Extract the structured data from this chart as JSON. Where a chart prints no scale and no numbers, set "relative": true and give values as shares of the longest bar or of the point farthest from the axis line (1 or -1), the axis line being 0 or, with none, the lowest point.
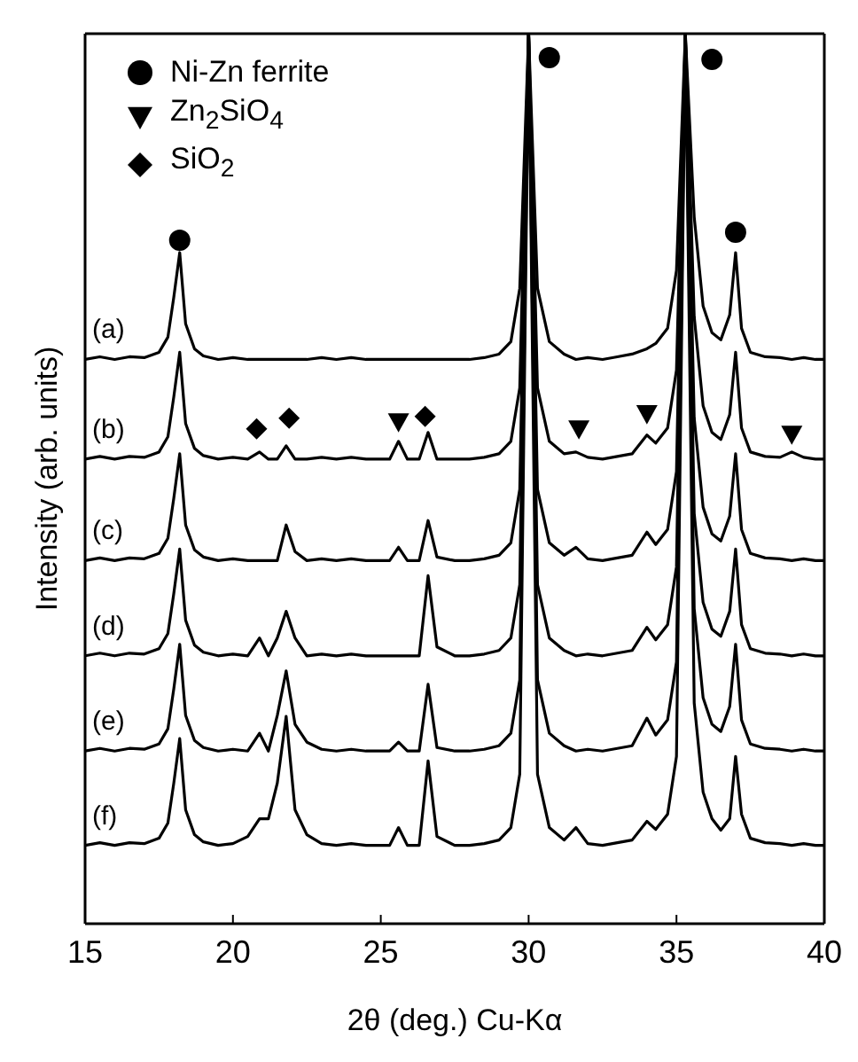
{
  "chart_data": {
    "type": "line",
    "xlabel": "2θ (deg.) Cu-Kα",
    "ylabel": "Intensity (arb. units)",
    "relative": true,
    "xlim": [
      15,
      40
    ],
    "xticks": [
      15,
      20,
      25,
      30,
      35,
      40
    ],
    "legend": "top left",
    "marker": "none",
    "line_style": "solid",
    "x": [
      15,
      15.5,
      16,
      16.5,
      17,
      17.5,
      17.8,
      18.0,
      18.2,
      18.4,
      18.7,
      19,
      19.5,
      20,
      20.5,
      20.9,
      21.2,
      21.5,
      21.8,
      22.1,
      22.5,
      23,
      23.5,
      24,
      24.5,
      25,
      25.3,
      25.6,
      25.9,
      26.3,
      26.6,
      26.9,
      27.5,
      28,
      28.5,
      29,
      29.4,
      29.7,
      30.0,
      30.3,
      30.7,
      31.2,
      31.6,
      32,
      32.5,
      33,
      33.5,
      34.0,
      34.3,
      34.7,
      35.0,
      35.3,
      35.6,
      35.9,
      36.2,
      36.5,
      36.8,
      37.0,
      37.2,
      37.5,
      38,
      38.5,
      38.9,
      39.3,
      39.7,
      40
    ],
    "series": [
      {
        "name": "(a)",
        "color": "#000000",
        "values": [
          0.634,
          0.637,
          0.634,
          0.637,
          0.636,
          0.642,
          0.659,
          0.704,
          0.754,
          0.674,
          0.646,
          0.638,
          0.634,
          0.636,
          0.634,
          0.634,
          0.634,
          0.634,
          0.634,
          0.634,
          0.634,
          0.636,
          0.634,
          0.636,
          0.634,
          0.634,
          0.634,
          0.634,
          0.634,
          0.634,
          0.634,
          0.634,
          0.634,
          0.634,
          0.636,
          0.64,
          0.654,
          0.714,
          1,
          0.714,
          0.654,
          0.64,
          0.634,
          0.636,
          0.634,
          0.637,
          0.64,
          0.646,
          0.652,
          0.669,
          0.734,
          1,
          0.794,
          0.694,
          0.664,
          0.656,
          0.684,
          0.754,
          0.669,
          0.642,
          0.637,
          0.636,
          0.634,
          0.636,
          0.634,
          0.634
        ]
      },
      {
        "name": "(b)",
        "color": "#000000",
        "values": [
          0.522,
          0.525,
          0.522,
          0.525,
          0.524,
          0.53,
          0.547,
          0.592,
          0.642,
          0.562,
          0.534,
          0.526,
          0.522,
          0.524,
          0.522,
          0.53,
          0.522,
          0.522,
          0.537,
          0.522,
          0.522,
          0.524,
          0.522,
          0.524,
          0.522,
          0.522,
          0.522,
          0.542,
          0.522,
          0.522,
          0.552,
          0.522,
          0.522,
          0.522,
          0.524,
          0.528,
          0.542,
          0.602,
          1,
          0.602,
          0.542,
          0.528,
          0.53,
          0.524,
          0.522,
          0.525,
          0.528,
          0.549,
          0.54,
          0.557,
          0.622,
          1,
          0.682,
          0.582,
          0.552,
          0.544,
          0.572,
          0.642,
          0.557,
          0.53,
          0.525,
          0.524,
          0.53,
          0.524,
          0.522,
          0.522
        ]
      },
      {
        "name": "(c)",
        "color": "#000000",
        "values": [
          0.408,
          0.411,
          0.408,
          0.411,
          0.41,
          0.416,
          0.433,
          0.478,
          0.528,
          0.448,
          0.42,
          0.412,
          0.408,
          0.41,
          0.408,
          0.408,
          0.408,
          0.408,
          0.448,
          0.418,
          0.408,
          0.41,
          0.408,
          0.41,
          0.408,
          0.408,
          0.408,
          0.423,
          0.408,
          0.408,
          0.453,
          0.412,
          0.408,
          0.408,
          0.41,
          0.414,
          0.428,
          0.488,
          1,
          0.488,
          0.428,
          0.414,
          0.423,
          0.41,
          0.408,
          0.411,
          0.414,
          0.44,
          0.426,
          0.443,
          0.508,
          1,
          0.568,
          0.468,
          0.438,
          0.43,
          0.458,
          0.528,
          0.443,
          0.416,
          0.411,
          0.41,
          0.408,
          0.41,
          0.408,
          0.408
        ]
      },
      {
        "name": "(d)",
        "color": "#000000",
        "values": [
          0.301,
          0.304,
          0.301,
          0.304,
          0.303,
          0.309,
          0.326,
          0.371,
          0.421,
          0.341,
          0.313,
          0.305,
          0.301,
          0.303,
          0.301,
          0.321,
          0.301,
          0.321,
          0.351,
          0.321,
          0.301,
          0.303,
          0.301,
          0.303,
          0.301,
          0.301,
          0.301,
          0.301,
          0.301,
          0.301,
          0.391,
          0.311,
          0.301,
          0.301,
          0.303,
          0.307,
          0.321,
          0.381,
          1,
          0.381,
          0.321,
          0.307,
          0.301,
          0.303,
          0.301,
          0.304,
          0.307,
          0.333,
          0.319,
          0.336,
          0.401,
          1,
          0.461,
          0.361,
          0.331,
          0.323,
          0.351,
          0.421,
          0.336,
          0.309,
          0.304,
          0.303,
          0.301,
          0.303,
          0.301,
          0.301
        ]
      },
      {
        "name": "(e)",
        "color": "#000000",
        "values": [
          0.194,
          0.197,
          0.194,
          0.197,
          0.196,
          0.202,
          0.219,
          0.264,
          0.314,
          0.234,
          0.206,
          0.198,
          0.194,
          0.196,
          0.194,
          0.214,
          0.194,
          0.234,
          0.284,
          0.224,
          0.204,
          0.196,
          0.194,
          0.196,
          0.194,
          0.194,
          0.194,
          0.204,
          0.194,
          0.194,
          0.269,
          0.198,
          0.194,
          0.194,
          0.196,
          0.2,
          0.214,
          0.274,
          1,
          0.274,
          0.214,
          0.2,
          0.194,
          0.196,
          0.194,
          0.197,
          0.2,
          0.231,
          0.212,
          0.229,
          0.294,
          1,
          0.354,
          0.254,
          0.224,
          0.216,
          0.244,
          0.314,
          0.229,
          0.202,
          0.197,
          0.196,
          0.194,
          0.196,
          0.194,
          0.194
        ]
      },
      {
        "name": "(f)",
        "color": "#000000",
        "values": [
          0.088,
          0.091,
          0.088,
          0.091,
          0.09,
          0.096,
          0.113,
          0.158,
          0.208,
          0.128,
          0.1,
          0.092,
          0.088,
          0.09,
          0.098,
          0.118,
          0.118,
          0.158,
          0.233,
          0.128,
          0.1,
          0.09,
          0.088,
          0.09,
          0.088,
          0.088,
          0.088,
          0.108,
          0.088,
          0.088,
          0.183,
          0.098,
          0.088,
          0.088,
          0.09,
          0.094,
          0.108,
          0.168,
          1,
          0.168,
          0.108,
          0.094,
          0.108,
          0.09,
          0.088,
          0.091,
          0.094,
          0.115,
          0.106,
          0.123,
          0.188,
          1,
          0.248,
          0.148,
          0.118,
          0.105,
          0.118,
          0.188,
          0.123,
          0.096,
          0.091,
          0.09,
          0.088,
          0.09,
          0.088,
          0.088
        ]
      },
      {
        "type": "scatter",
        "name": "Ni-Zn ferrite",
        "color": "#000000",
        "marker": "circle",
        "x": [
          18.2,
          30.7,
          36.2,
          37.0
        ],
        "values": [
          0.768,
          0.973,
          0.971,
          0.777
        ]
      },
      {
        "type": "scatter",
        "name": "Zn$_{2}$SiO$_{4}$",
        "color": "#000000",
        "marker": "triangle",
        "x": [
          25.6,
          31.7,
          34.0,
          38.9
        ],
        "values": [
          0.564,
          0.556,
          0.573,
          0.55
        ]
      },
      {
        "type": "scatter",
        "name": "SiO$_{2}$",
        "color": "#000000",
        "marker": "diamond",
        "x": [
          20.8,
          21.9,
          26.5
        ],
        "values": [
          0.556,
          0.568,
          0.57
        ]
      }
    ]
  }
}
